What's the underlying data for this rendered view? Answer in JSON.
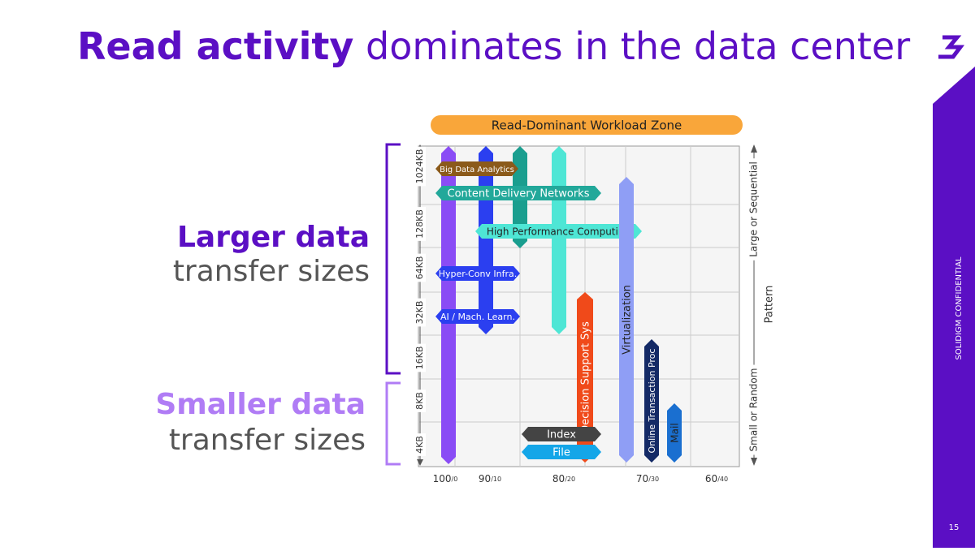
{
  "title": {
    "bold": "Read activity",
    "rest": "dominates in the data center"
  },
  "left_labels": [
    {
      "bold": "Larger data",
      "rest": "transfer sizes"
    },
    {
      "bold": "Smaller data",
      "rest": "transfer sizes"
    }
  ],
  "zone": "Read-Dominant Workload Zone",
  "y_labels": [
    "4KB",
    "8KB",
    "16KB",
    "32KB",
    "64KB",
    "128KB",
    "1024KB"
  ],
  "x_labels": [
    {
      "main": "100",
      "sub": "/0"
    },
    {
      "main": "90",
      "sub": "/10"
    },
    {
      "main": "80",
      "sub": "/20"
    },
    {
      "main": "70",
      "sub": "/30"
    },
    {
      "main": "60",
      "sub": "/40"
    }
  ],
  "right_axis": {
    "bottom": "Small or Random",
    "top": "Large or Sequential",
    "title": "Pattern"
  },
  "workloads": [
    "Big Data Analytics",
    "Content Delivery Networks",
    "High Performance Computing",
    "Hyper-Conv Infra.",
    "AI / Mach. Learn.",
    "Decision Support Sys",
    "Virtualization",
    "Online Transaction Proc",
    "Mail",
    "Index",
    "File"
  ],
  "side": {
    "confidential": "SOLIDIGM CONFIDENTIAL",
    "page": "15"
  }
}
